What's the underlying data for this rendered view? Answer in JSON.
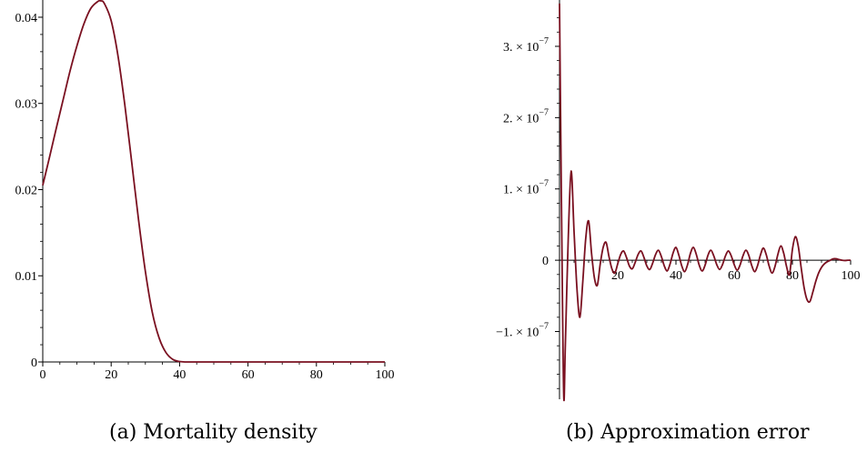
{
  "captions": {
    "left": "(a) Mortality density",
    "right": "(b) Approximation error"
  },
  "chart_data": [
    {
      "type": "line",
      "title": "",
      "xlabel": "",
      "ylabel": "",
      "xlim": [
        0,
        100
      ],
      "ylim": [
        0,
        0.042
      ],
      "grid": false,
      "line_color": "#7a1020",
      "x_ticks": [
        0,
        20,
        40,
        60,
        80,
        100
      ],
      "x_tick_labels": [
        "0",
        "20",
        "40",
        "60",
        "80",
        "100"
      ],
      "y_ticks": [
        0,
        0.01,
        0.02,
        0.03,
        0.04
      ],
      "y_tick_labels": [
        "0",
        "0.01",
        "0.02",
        "0.03",
        "0.04"
      ],
      "series": [
        {
          "x": [
            0,
            2,
            4,
            6,
            8,
            10,
            12,
            14,
            16,
            17,
            18,
            20,
            22,
            24,
            26,
            28,
            30,
            32,
            34,
            36,
            38,
            40,
            42,
            45,
            50,
            60,
            80,
            100
          ],
          "y": [
            0.0205,
            0.0238,
            0.0272,
            0.0305,
            0.0338,
            0.0367,
            0.0392,
            0.041,
            0.0418,
            0.0419,
            0.0416,
            0.0396,
            0.0355,
            0.0298,
            0.0232,
            0.0165,
            0.0105,
            0.0058,
            0.0028,
            0.0011,
            0.0003,
            5e-05,
            0,
            0,
            0,
            0,
            0,
            0
          ]
        }
      ]
    },
    {
      "type": "line",
      "title": "",
      "xlabel": "",
      "ylabel": "",
      "xlim": [
        0,
        100
      ],
      "ylim": [
        -1.95e-07,
        3.65e-07
      ],
      "grid": false,
      "line_color": "#7a1020",
      "x_ticks": [
        20,
        40,
        60,
        80,
        100
      ],
      "x_tick_labels": [
        "20",
        "40",
        "60",
        "80",
        "100"
      ],
      "y_ticks": [
        3e-07,
        2e-07,
        1e-07,
        0,
        -1e-07
      ],
      "y_tick_labels": [
        {
          "mant": "3. × 10",
          "exp": "−7"
        },
        {
          "mant": "2. × 10",
          "exp": "−7"
        },
        {
          "mant": "1. × 10",
          "exp": "−7"
        },
        {
          "mant": "0",
          "exp": ""
        },
        {
          "mant": "−1. × 10",
          "exp": "−7"
        }
      ],
      "series": [
        {
          "x": [
            0,
            0.5,
            1,
            1.5,
            2,
            3,
            4,
            5,
            6,
            7,
            8,
            9,
            10,
            11,
            12,
            13,
            14,
            15,
            16,
            17,
            18,
            19,
            20,
            21,
            22,
            23,
            24,
            25,
            26,
            27,
            28,
            29,
            30,
            31,
            32,
            33,
            34,
            35,
            36,
            37,
            38,
            39,
            40,
            41,
            42,
            43,
            44,
            45,
            46,
            47,
            48,
            49,
            50,
            51,
            52,
            53,
            54,
            55,
            56,
            57,
            58,
            59,
            60,
            61,
            62,
            63,
            64,
            65,
            66,
            67,
            68,
            69,
            70,
            71,
            72,
            73,
            74,
            75,
            76,
            77,
            78,
            79,
            80,
            81,
            82,
            83,
            84,
            85,
            86,
            87,
            88,
            89,
            90,
            91,
            92,
            93,
            94,
            95,
            96,
            97,
            98,
            99,
            100
          ],
          "y": [
            3.6e-07,
            1.5e-07,
            -5e-08,
            -1.95e-07,
            -1.2e-07,
            3e-08,
            1.25e-07,
            4e-08,
            -4e-08,
            -8e-08,
            -3e-08,
            3e-08,
            5.5e-08,
            1e-08,
            -2.5e-08,
            -3.5e-08,
            -5e-09,
            1.8e-08,
            2.5e-08,
            5e-09,
            -1.2e-08,
            -1.8e-08,
            -5e-09,
            8e-09,
            1.3e-08,
            4e-09,
            -8e-09,
            -1.2e-08,
            -3e-09,
            8e-09,
            1.3e-08,
            4e-09,
            -8e-09,
            -1.3e-08,
            -4e-09,
            8e-09,
            1.4e-08,
            5e-09,
            -8e-09,
            -1.5e-08,
            -5e-09,
            1e-08,
            1.8e-08,
            7e-09,
            -8e-09,
            -1.6e-08,
            -6e-09,
            1e-08,
            1.8e-08,
            8e-09,
            -7e-09,
            -1.5e-08,
            -7e-09,
            7e-09,
            1.4e-08,
            6e-09,
            -6e-09,
            -1.3e-08,
            -6e-09,
            6e-09,
            1.3e-08,
            6e-09,
            -6e-09,
            -1.4e-08,
            -7e-09,
            6e-09,
            1.4e-08,
            7e-09,
            -7e-09,
            -1.6e-08,
            -8e-09,
            7e-09,
            1.7e-08,
            8e-09,
            -8e-09,
            -1.8e-08,
            -9e-09,
            8e-09,
            2e-08,
            1e-08,
            -9e-09,
            -2e-08,
            1.5e-08,
            3.3e-08,
            2e-08,
            -1e-08,
            -3.8e-08,
            -5.5e-08,
            -5.8e-08,
            -4.5e-08,
            -3e-08,
            -1.8e-08,
            -1e-08,
            -5e-09,
            -2e-09,
            0.0,
            2e-09,
            2e-09,
            1e-09,
            0.0,
            -5e-10,
            0.0,
            0.0
          ]
        }
      ]
    }
  ]
}
